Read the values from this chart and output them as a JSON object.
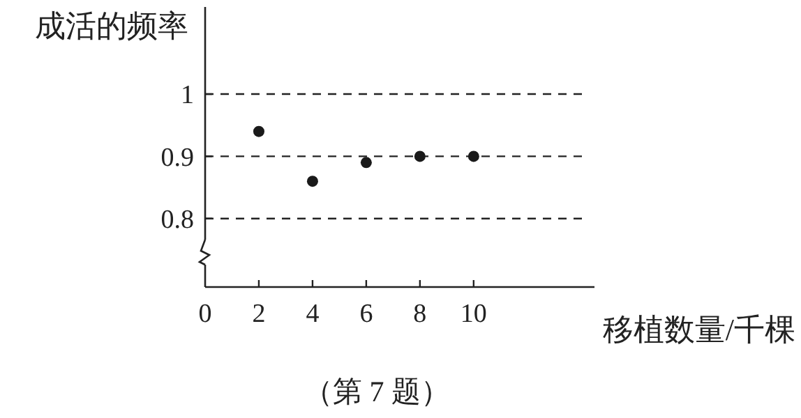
{
  "chart_data": {
    "type": "scatter",
    "ylabel": "成活的频率",
    "xlabel": "移植数量/千棵",
    "annotations": [
      "（第 7 题）"
    ],
    "x": [
      2,
      4,
      6,
      8,
      10
    ],
    "values": [
      0.94,
      0.86,
      0.89,
      0.9,
      0.9
    ],
    "color": "#1a1a1a",
    "xlim": [
      0,
      14.5
    ],
    "xticks": [
      0,
      2,
      4,
      6,
      8,
      10
    ],
    "ylim": [
      0.69,
      1.14
    ],
    "yticks": [
      0.8,
      0.9,
      1
    ],
    "grid": "y",
    "marker": "circle"
  }
}
